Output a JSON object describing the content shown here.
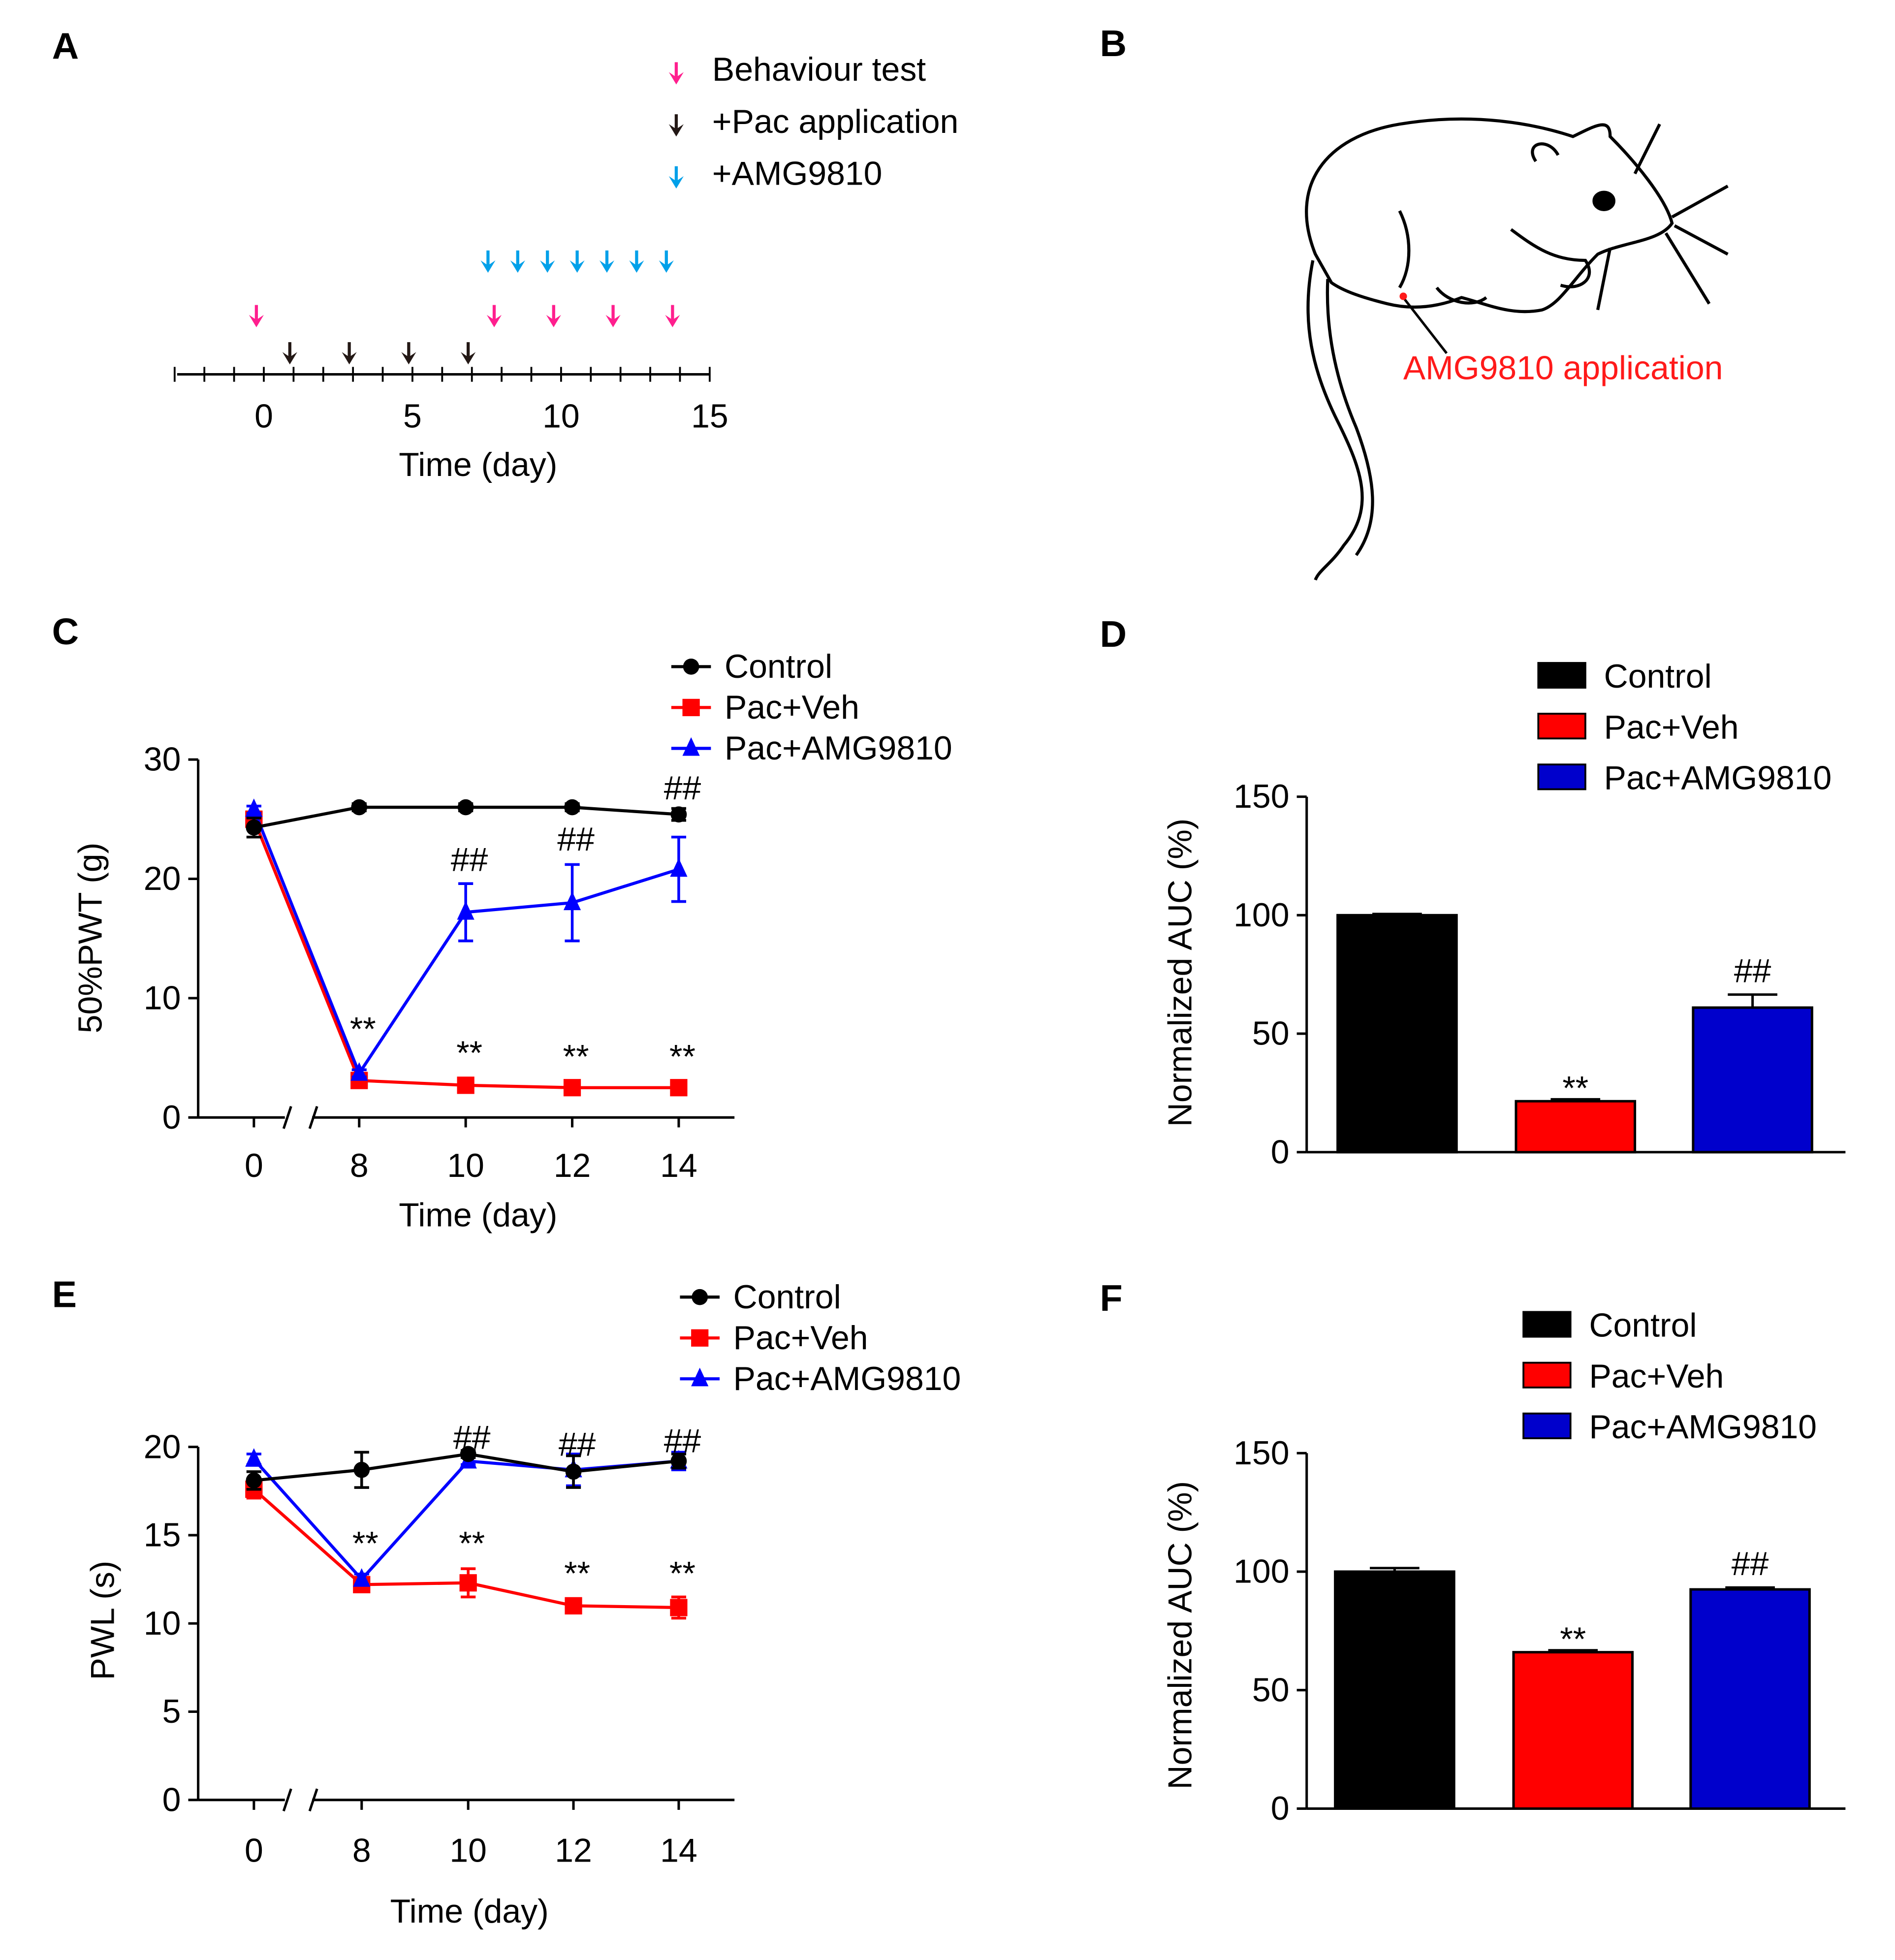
{
  "panel_labels": [
    "A",
    "B",
    "C",
    "D",
    "E",
    "F"
  ],
  "panelA": {
    "legend": [
      {
        "label": "Behaviour test",
        "color": "#ff1f8e"
      },
      {
        "label": "+Pac application",
        "color": "#231815"
      },
      {
        "label": "+AMG9810",
        "color": "#00a0e9"
      }
    ],
    "behaviour_days": [
      0,
      8,
      10,
      12,
      14
    ],
    "pac_days": [
      1,
      3,
      5,
      7
    ],
    "amg_days": [
      8,
      9,
      10,
      11,
      12,
      13,
      14
    ],
    "xticks": [
      0,
      5,
      10,
      15
    ],
    "xlim": [
      -3,
      15
    ],
    "xlabel": "Time (day)"
  },
  "panelB": {
    "annotation": "AMG9810 application",
    "annotation_color": "#ff1a1a"
  },
  "chart_data": [
    {
      "id": "C",
      "type": "line",
      "ylabel": "50%PWT (g)",
      "xlabel": "Time (day)",
      "x": [
        0,
        8,
        10,
        12,
        14
      ],
      "xticks": [
        "0",
        "8",
        "10",
        "12",
        "14"
      ],
      "x_break": true,
      "ylim": [
        0,
        30
      ],
      "yticks": [
        0,
        10,
        20,
        30
      ],
      "series": [
        {
          "name": "Control",
          "color": "#000000",
          "marker": "circle",
          "values": [
            24.3,
            26,
            26,
            26,
            25.4
          ],
          "errors": [
            0.8,
            0.3,
            0.3,
            0.3,
            0.5
          ]
        },
        {
          "name": "Pac+Veh",
          "color": "#ff0000",
          "marker": "square",
          "values": [
            25,
            3.1,
            2.7,
            2.5,
            2.5
          ],
          "errors": [
            0.5,
            0.3,
            0.3,
            0.3,
            0.3
          ]
        },
        {
          "name": "Pac+AMG9810",
          "color": "#0000ff",
          "marker": "triangle",
          "values": [
            25.8,
            3.7,
            17.2,
            18,
            20.8
          ],
          "errors": [
            0.3,
            0.3,
            2.4,
            3.2,
            2.7
          ]
        }
      ],
      "annotations": [
        {
          "text": "**",
          "x": 8,
          "y": 7.5
        },
        {
          "text": "**",
          "x": 10,
          "y": 5.5
        },
        {
          "text": "**",
          "x": 12,
          "y": 5.2
        },
        {
          "text": "**",
          "x": 14,
          "y": 5.2
        },
        {
          "text": "##",
          "x": 10,
          "y": 21.7
        },
        {
          "text": "##",
          "x": 12,
          "y": 23.4
        },
        {
          "text": "##",
          "x": 14,
          "y": 27.7
        }
      ]
    },
    {
      "id": "D",
      "type": "bar",
      "ylabel": "Normalized AUC (%)",
      "categories": [
        "Control",
        "Pac+Veh",
        "Pac+AMG9810"
      ],
      "colors": [
        "#000000",
        "#ff0000",
        "#0000cc"
      ],
      "values": [
        100,
        21.5,
        61
      ],
      "errors": [
        0.5,
        0.8,
        5.5
      ],
      "ylim": [
        0,
        150
      ],
      "yticks": [
        0,
        50,
        100,
        150
      ],
      "annotations": [
        {
          "text": "**",
          "bar": 1
        },
        {
          "text": "##",
          "bar": 2
        }
      ]
    },
    {
      "id": "E",
      "type": "line",
      "ylabel": "PWL (s)",
      "xlabel": "Time (day)",
      "x": [
        0,
        8,
        10,
        12,
        14
      ],
      "xticks": [
        "0",
        "8",
        "10",
        "12",
        "14"
      ],
      "x_break": true,
      "ylim": [
        0,
        20
      ],
      "yticks": [
        0,
        5,
        10,
        15,
        20
      ],
      "series": [
        {
          "name": "Control",
          "color": "#000000",
          "marker": "circle",
          "values": [
            18.1,
            18.7,
            19.6,
            18.6,
            19.2
          ],
          "errors": [
            0.5,
            1.0,
            0.2,
            0.9,
            0.4
          ]
        },
        {
          "name": "Pac+Veh",
          "color": "#ff0000",
          "marker": "square",
          "values": [
            17.6,
            12.2,
            12.3,
            11,
            10.9
          ],
          "errors": [
            0.5,
            0.3,
            0.8,
            0.3,
            0.6
          ]
        },
        {
          "name": "Pac+AMG9810",
          "color": "#0000ff",
          "marker": "triangle",
          "values": [
            19.3,
            12.5,
            19.2,
            18.7,
            19.2
          ],
          "errors": [
            0.3,
            0.3,
            0.2,
            0.9,
            0.5
          ]
        }
      ],
      "annotations": [
        {
          "text": "**",
          "x": 8,
          "y": 14.6
        },
        {
          "text": "**",
          "x": 10,
          "y": 14.6
        },
        {
          "text": "**",
          "x": 12,
          "y": 12.9
        },
        {
          "text": "**",
          "x": 14,
          "y": 12.9
        },
        {
          "text": "##",
          "x": 10,
          "y": 20.6
        },
        {
          "text": "##",
          "x": 12,
          "y": 20.2
        },
        {
          "text": "##",
          "x": 14,
          "y": 20.4
        }
      ]
    },
    {
      "id": "F",
      "type": "bar",
      "ylabel": "Normalized AUC (%)",
      "categories": [
        "Control",
        "Pac+Veh",
        "Pac+AMG9810"
      ],
      "colors": [
        "#000000",
        "#ff0000",
        "#0000cc"
      ],
      "values": [
        100,
        66,
        92.5
      ],
      "errors": [
        1.5,
        0.8,
        0.8
      ],
      "ylim": [
        0,
        150
      ],
      "yticks": [
        0,
        50,
        100,
        150
      ],
      "annotations": [
        {
          "text": "**",
          "bar": 1
        },
        {
          "text": "##",
          "bar": 2
        }
      ]
    }
  ]
}
